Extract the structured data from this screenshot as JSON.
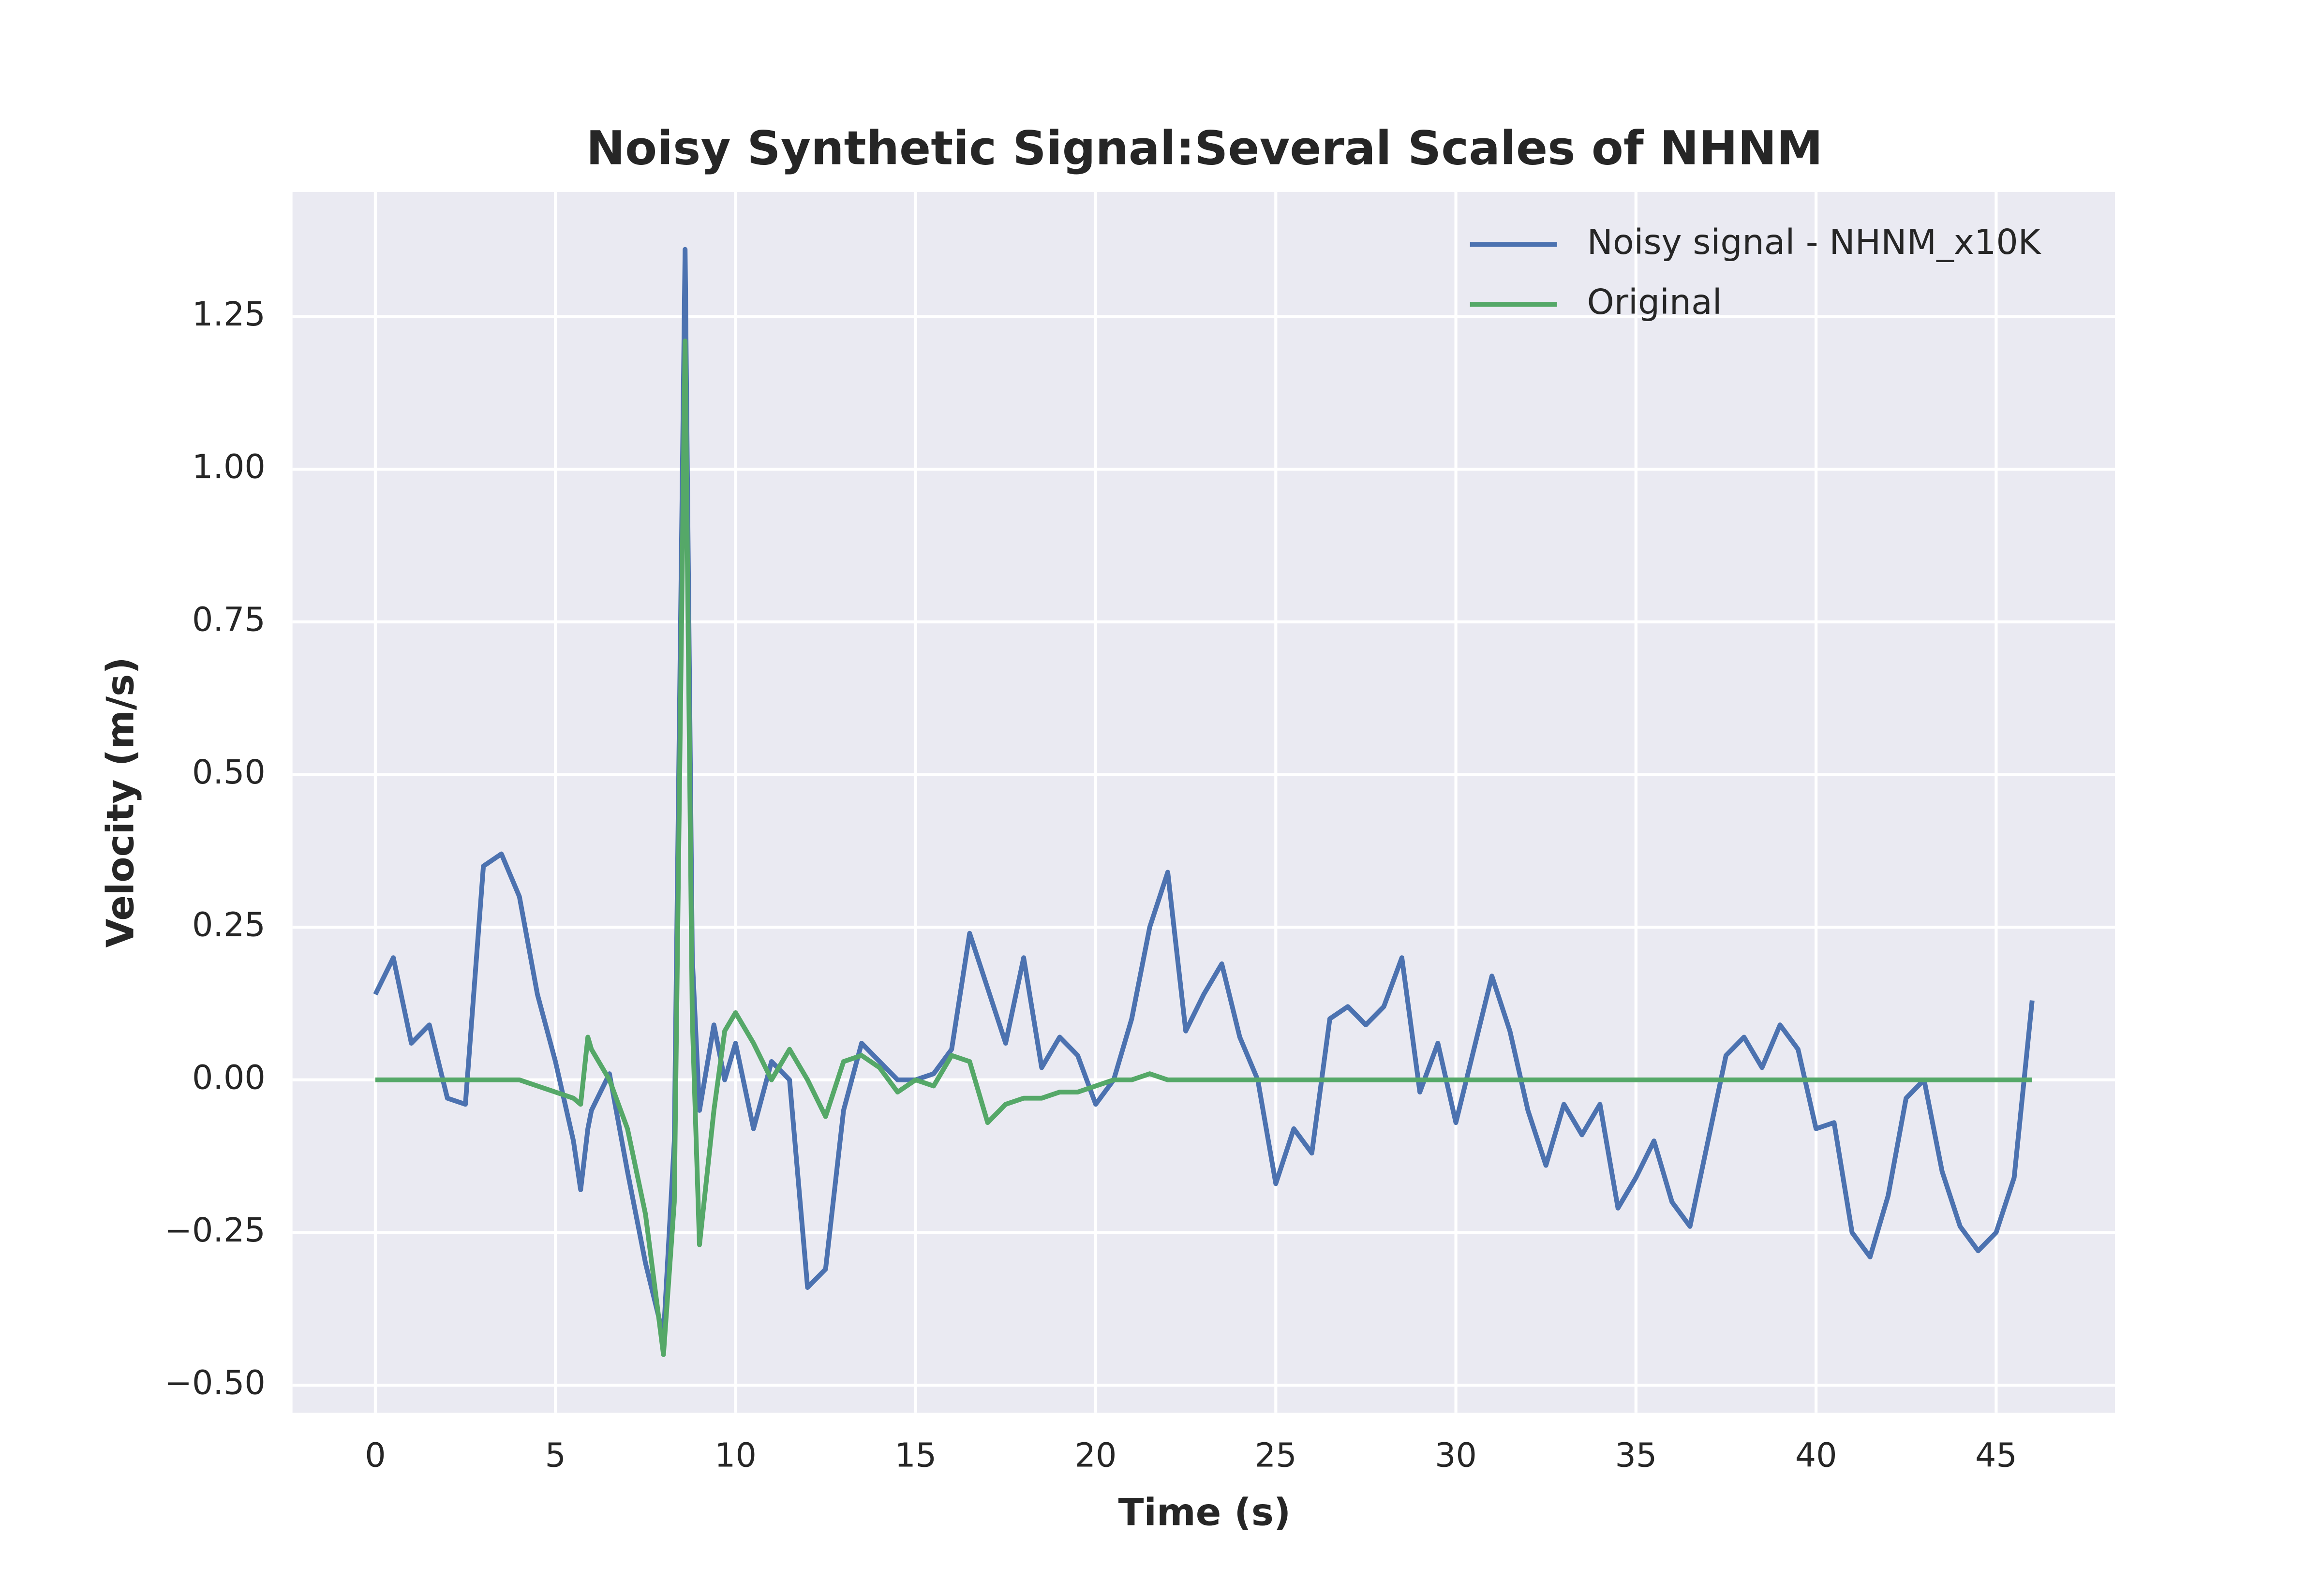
{
  "chart_data": {
    "type": "line",
    "title": "Noisy Synthetic Signal:Several Scales of NHNM",
    "xlabel": "Time (s)",
    "ylabel": "Velocity (m/s)",
    "x": [
      0,
      0.5,
      1,
      1.5,
      2,
      2.5,
      3,
      3.5,
      4,
      4.5,
      5,
      5.5,
      5.7,
      5.9,
      6,
      6.5,
      7,
      7.5,
      8,
      8.3,
      8.6,
      8.8,
      9,
      9.4,
      9.7,
      10,
      10.5,
      11,
      11.5,
      12,
      12.5,
      13,
      13.5,
      14,
      14.5,
      15,
      15.5,
      16,
      16.5,
      17,
      17.5,
      18,
      18.5,
      19,
      19.5,
      20,
      20.5,
      21,
      21.5,
      22,
      22.5,
      23,
      23.5,
      24,
      24.5,
      25,
      25.5,
      26,
      26.5,
      27,
      27.5,
      28,
      28.5,
      29,
      29.5,
      30,
      30.5,
      31,
      31.5,
      32,
      32.5,
      33,
      33.5,
      34,
      34.5,
      35,
      35.5,
      36,
      36.5,
      37,
      37.5,
      38,
      38.5,
      39,
      39.5,
      40,
      40.5,
      41,
      41.5,
      42,
      42.5,
      43,
      43.5,
      44,
      44.5,
      45,
      45.5,
      46
    ],
    "series": [
      {
        "name": "Noisy signal - NHNM_x10K",
        "color": "#4c72b0",
        "values": [
          0.14,
          0.2,
          0.06,
          0.09,
          -0.03,
          -0.04,
          0.35,
          0.37,
          0.3,
          0.14,
          0.03,
          -0.1,
          -0.18,
          -0.08,
          -0.05,
          0.01,
          -0.15,
          -0.3,
          -0.42,
          -0.1,
          1.36,
          0.2,
          -0.05,
          0.09,
          0,
          0.06,
          -0.08,
          0.03,
          0,
          -0.34,
          -0.31,
          -0.05,
          0.06,
          0.03,
          0,
          0,
          0.01,
          0.05,
          0.24,
          0.15,
          0.06,
          0.2,
          0.02,
          0.07,
          0.04,
          -0.04,
          0,
          0.1,
          0.25,
          0.34,
          0.08,
          0.14,
          0.19,
          0.07,
          0,
          -0.17,
          -0.08,
          -0.12,
          0.1,
          0.12,
          0.09,
          0.12,
          0.2,
          -0.02,
          0.06,
          -0.07,
          0.05,
          0.17,
          0.08,
          -0.05,
          -0.14,
          -0.04,
          -0.09,
          -0.04,
          -0.21,
          -0.16,
          -0.1,
          -0.2,
          -0.24,
          -0.1,
          0.04,
          0.07,
          0.02,
          0.09,
          0.05,
          -0.08,
          -0.07,
          -0.25,
          -0.29,
          -0.19,
          -0.03,
          0,
          -0.15,
          -0.24,
          -0.28,
          -0.25,
          -0.16,
          0.13
        ]
      },
      {
        "name": "Original",
        "color": "#55a868",
        "values": [
          0,
          0,
          0,
          0,
          0,
          0,
          0,
          0,
          0,
          -0.01,
          -0.02,
          -0.03,
          -0.04,
          0.07,
          0.05,
          0,
          -0.08,
          -0.22,
          -0.45,
          -0.2,
          1.21,
          0.1,
          -0.27,
          -0.05,
          0.08,
          0.11,
          0.06,
          0,
          0.05,
          0,
          -0.06,
          0.03,
          0.04,
          0.02,
          -0.02,
          0,
          -0.01,
          0.04,
          0.03,
          -0.07,
          -0.04,
          -0.03,
          -0.03,
          -0.02,
          -0.02,
          -0.01,
          0,
          0,
          0.01,
          0,
          0,
          0,
          0,
          0,
          0,
          0,
          0,
          0,
          0,
          0,
          0,
          0,
          0,
          0,
          0,
          0,
          0,
          0,
          0,
          0,
          0,
          0,
          0,
          0,
          0,
          0,
          0,
          0,
          0,
          0,
          0,
          0,
          0,
          0,
          0,
          0,
          0,
          0,
          0,
          0,
          0,
          0,
          0,
          0,
          0,
          0,
          0,
          0
        ]
      }
    ],
    "xlim": [
      -2.3,
      48.3
    ],
    "ylim": [
      -0.545,
      1.454
    ],
    "xticks": [
      0,
      5,
      10,
      15,
      20,
      25,
      30,
      35,
      40,
      45
    ],
    "yticks": [
      {
        "value": -0.5,
        "label": "−0.50"
      },
      {
        "value": -0.25,
        "label": "−0.25"
      },
      {
        "value": 0,
        "label": "0.00"
      },
      {
        "value": 0.25,
        "label": "0.25"
      },
      {
        "value": 0.5,
        "label": "0.50"
      },
      {
        "value": 0.75,
        "label": "0.75"
      },
      {
        "value": 1,
        "label": "1.00"
      },
      {
        "value": 1.25,
        "label": "1.25"
      }
    ],
    "grid": true,
    "legend": "upper right"
  }
}
